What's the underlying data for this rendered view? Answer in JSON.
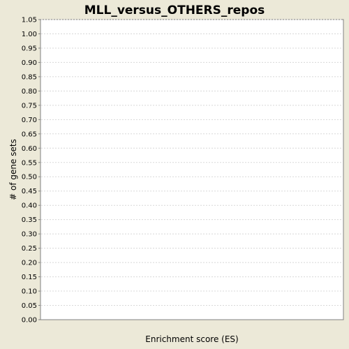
{
  "chart_data": {
    "type": "bar",
    "title": "MLL_versus_OTHERS_repos",
    "xlabel": "Enrichment score (ES)",
    "ylabel": "# of gene sets",
    "ylim": [
      0,
      1.05
    ],
    "yticks": [
      "0.00",
      "0.05",
      "0.10",
      "0.15",
      "0.20",
      "0.25",
      "0.30",
      "0.35",
      "0.40",
      "0.45",
      "0.50",
      "0.55",
      "0.60",
      "0.65",
      "0.70",
      "0.75",
      "0.80",
      "0.85",
      "0.90",
      "0.95",
      "1.00",
      "1.05"
    ],
    "categories": [],
    "values": [],
    "grid": true,
    "legend": "none",
    "colors": {
      "page_background": "#ECE9D8",
      "plot_background": "#FFFFFF",
      "plot_border": "#808080",
      "gridline": "#D8D8D8",
      "text": "#000000"
    }
  }
}
